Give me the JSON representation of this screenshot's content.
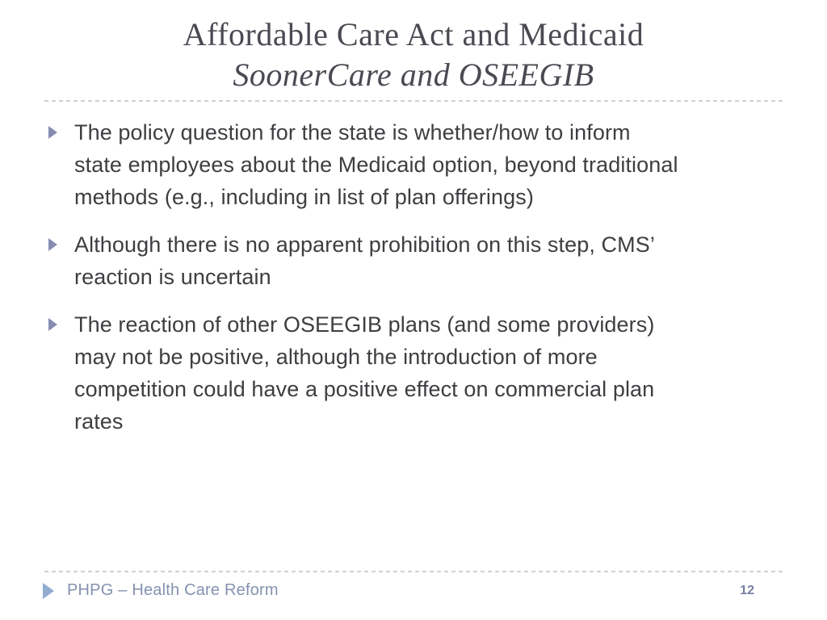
{
  "slide": {
    "title": "Affordable Care Act and Medicaid",
    "subtitle": "SoonerCare and OSEEGIB",
    "bullets": [
      {
        "text": "The policy question for the state is whether/how to inform\nstate employees about the Medicaid option, beyond traditional\nmethods (e.g., including in list of plan offerings)"
      },
      {
        "text": "Although there is no apparent prohibition on this step, CMS’\nreaction is uncertain"
      },
      {
        "text": "The reaction of other OSEEGIB plans (and some providers)\nmay not be positive, although the introduction of more\ncompetition could have a positive effect on commercial plan\nrates"
      }
    ],
    "footer": {
      "label": "PHPG – Health Care Reform",
      "page_number": "12"
    },
    "colors": {
      "title_text": "#494a52",
      "body_text": "#3e3e42",
      "bullet_marker": "#878db1",
      "footer_triangle": "#92add0",
      "footer_text": "#8492af",
      "page_number": "#767fa3",
      "dotted_rule": "#cdd0d4",
      "background": "#ffffff"
    }
  }
}
